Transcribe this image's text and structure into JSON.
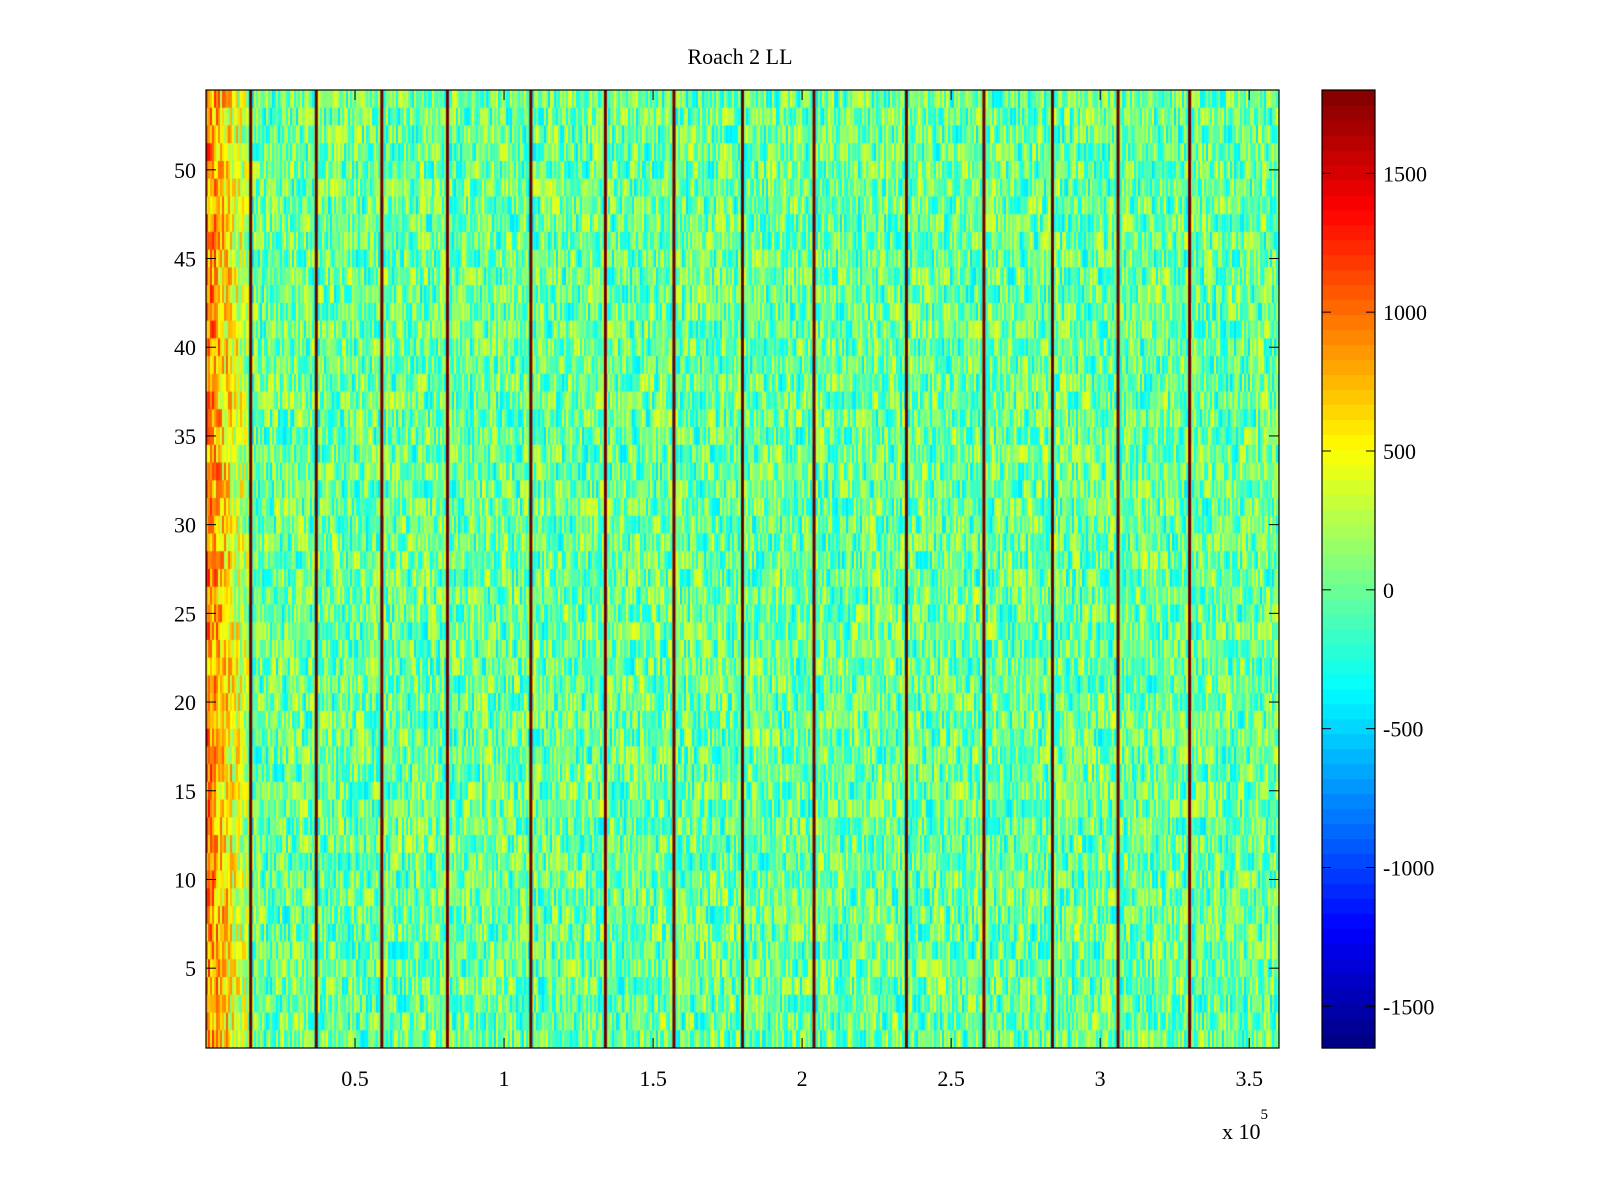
{
  "chart_data": {
    "type": "heatmap",
    "title": "Roach 2 LL",
    "xlabel": "",
    "ylabel": "",
    "x_multiplier": "x 10",
    "x_multiplier_exp": "5",
    "xlim": [
      0.5,
      360000
    ],
    "ylim": [
      0.5,
      54.5
    ],
    "x_ticks": [
      50000,
      100000,
      150000,
      200000,
      250000,
      300000,
      350000
    ],
    "x_tick_labels": [
      "0.5",
      "1",
      "1.5",
      "2",
      "2.5",
      "3",
      "3.5"
    ],
    "y_ticks": [
      5,
      10,
      15,
      20,
      25,
      30,
      35,
      40,
      45,
      50
    ],
    "y_tick_labels": [
      "5",
      "10",
      "15",
      "20",
      "25",
      "30",
      "35",
      "40",
      "45",
      "50"
    ],
    "colorbar": {
      "colormap": "jet",
      "clim": [
        -1650,
        1800
      ],
      "ticks": [
        -1500,
        -1000,
        -500,
        0,
        500,
        1000,
        1500
      ],
      "tick_labels": [
        "-1500",
        "-1000",
        "-500",
        "0",
        "500",
        "1000",
        "1500"
      ]
    },
    "rows": 54,
    "background_level": 0,
    "left_edge_band": {
      "x_range": [
        0,
        15000
      ],
      "level": 800
    },
    "streak_positions_x": [
      15000,
      37000,
      59000,
      81000,
      109000,
      134000,
      157000,
      180000,
      204000,
      235000,
      261000,
      284000,
      306000,
      330000
    ],
    "streak_level": 1800,
    "grid": false,
    "legend": "none"
  }
}
